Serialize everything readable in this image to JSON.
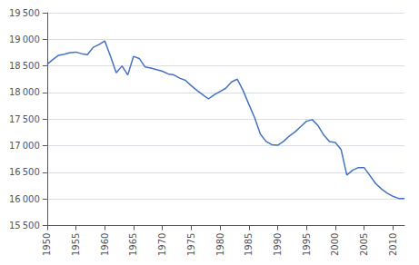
{
  "chart_data": {
    "type": "line",
    "x": [
      1950,
      1951,
      1952,
      1953,
      1954,
      1955,
      1956,
      1957,
      1958,
      1959,
      1960,
      1961,
      1962,
      1963,
      1964,
      1965,
      1966,
      1967,
      1968,
      1969,
      1970,
      1971,
      1972,
      1973,
      1974,
      1975,
      1976,
      1977,
      1978,
      1979,
      1980,
      1981,
      1982,
      1983,
      1984,
      1985,
      1986,
      1987,
      1988,
      1989,
      1990,
      1991,
      1992,
      1993,
      1994,
      1995,
      1996,
      1997,
      1998,
      1999,
      2000,
      2001,
      2002,
      2003,
      2004,
      2005,
      2006,
      2007,
      2008,
      2009,
      2010,
      2011,
      2012
    ],
    "values": [
      18530,
      18620,
      18700,
      18720,
      18750,
      18760,
      18730,
      18710,
      18850,
      18900,
      18970,
      18680,
      18370,
      18500,
      18330,
      18680,
      18640,
      18480,
      18460,
      18430,
      18400,
      18350,
      18330,
      18270,
      18230,
      18130,
      18040,
      17960,
      17880,
      17960,
      18020,
      18080,
      18200,
      18250,
      18040,
      17780,
      17530,
      17220,
      17080,
      17020,
      17010,
      17080,
      17180,
      17260,
      17360,
      17460,
      17490,
      17380,
      17200,
      17080,
      17060,
      16930,
      16450,
      16540,
      16590,
      16590,
      16440,
      16290,
      16190,
      16110,
      16050,
      16010,
      16010
    ],
    "color": "#4472C4",
    "xlim": [
      1950,
      2012
    ],
    "xticks": [
      1950,
      1955,
      1960,
      1965,
      1970,
      1975,
      1980,
      1985,
      1990,
      1995,
      2000,
      2005,
      2010
    ],
    "ylim": [
      15500,
      19500
    ],
    "yticks": [
      {
        "value": 15500,
        "label": "15 500"
      },
      {
        "value": 16000,
        "label": "16 000"
      },
      {
        "value": 16500,
        "label": "16 500"
      },
      {
        "value": 17000,
        "label": "17 000"
      },
      {
        "value": 17500,
        "label": "17 500"
      },
      {
        "value": 18000,
        "label": "18 000"
      },
      {
        "value": 18500,
        "label": "18 500"
      },
      {
        "value": 19000,
        "label": "19 000"
      },
      {
        "value": 19500,
        "label": "19 500"
      }
    ],
    "grid": "y"
  }
}
